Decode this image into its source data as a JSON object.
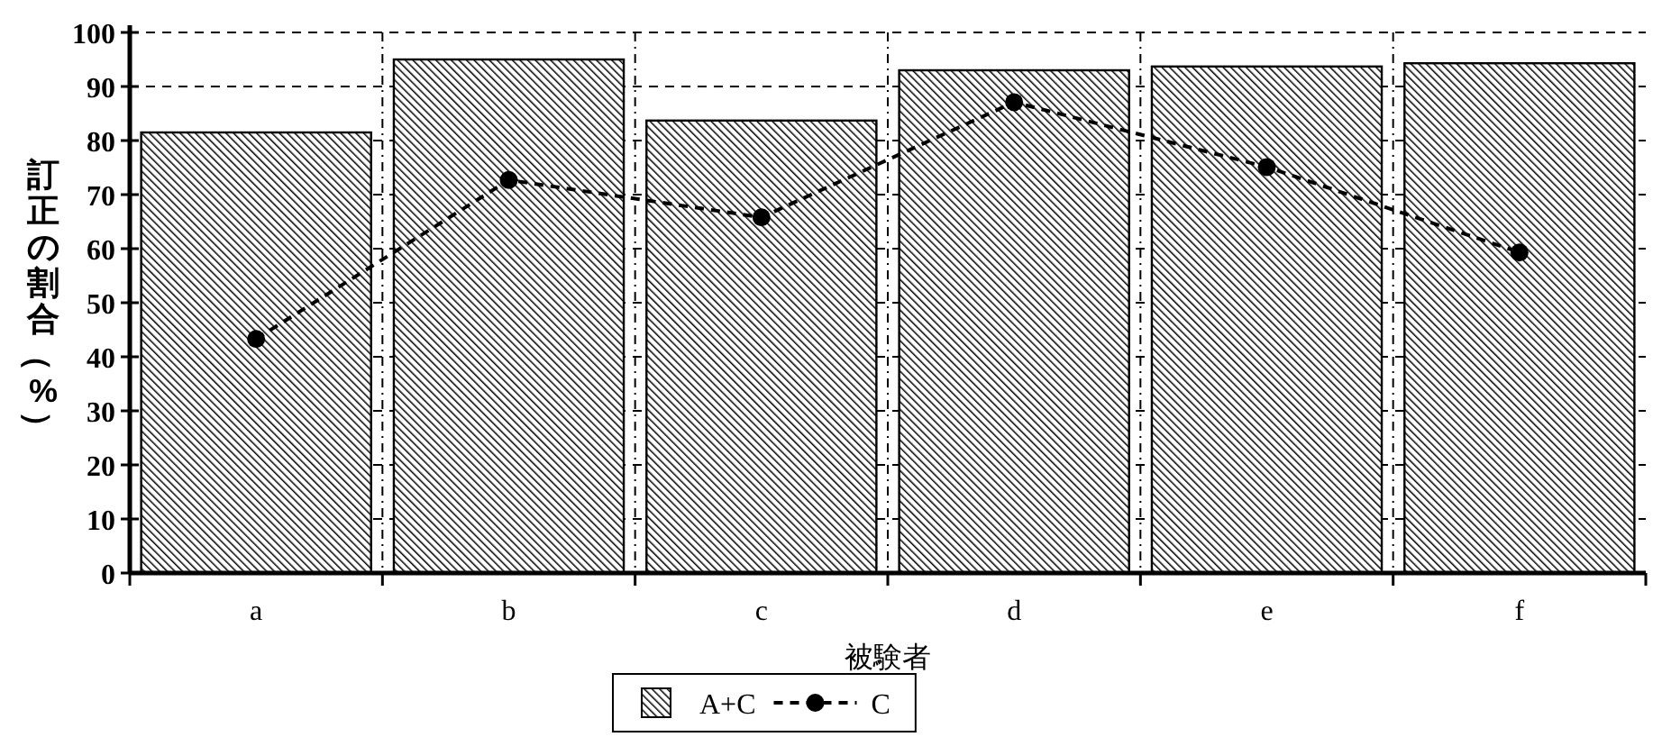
{
  "chart_data": {
    "type": "bar",
    "xlabel": "被験者",
    "ylabel": "訂正の割合（%）",
    "categories": [
      "a",
      "b",
      "c",
      "d",
      "e",
      "f"
    ],
    "series": [
      {
        "name": "A+C",
        "color": "#000000",
        "values": [
          81.5,
          95,
          83.7,
          93,
          93.7,
          94.3
        ]
      },
      {
        "name": "C",
        "type": "line",
        "color": "#000000",
        "marker": "circle",
        "line_style": "dashed",
        "values": [
          43.3,
          72.7,
          65.8,
          87.1,
          75.1,
          59.3
        ]
      }
    ],
    "ylim": [
      0,
      100
    ],
    "yticks": [
      0,
      10,
      20,
      30,
      40,
      50,
      60,
      70,
      80,
      90,
      100
    ],
    "grid": true,
    "legend": "bottom"
  }
}
